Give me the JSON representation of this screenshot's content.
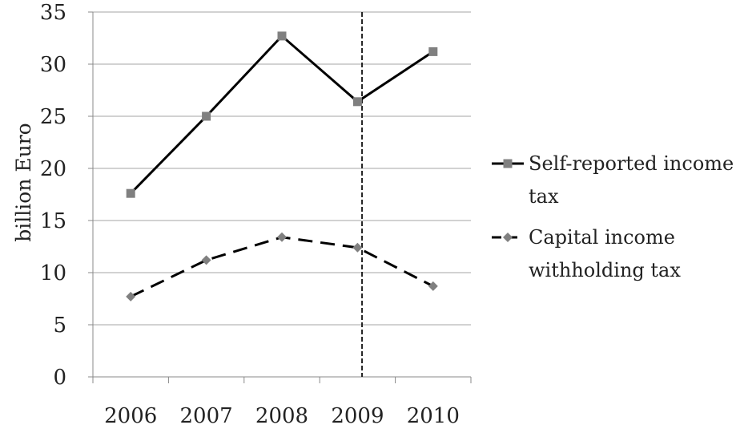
{
  "chart_data": {
    "type": "line",
    "title": "",
    "xlabel": "",
    "ylabel": "billion Euro",
    "categories": [
      "2006",
      "2007",
      "2008",
      "2009",
      "2010"
    ],
    "ylim": [
      0,
      35
    ],
    "yticks": [
      0,
      5,
      10,
      15,
      20,
      25,
      30,
      35
    ],
    "y_tick_labels": [
      "0",
      "5",
      "10",
      "15",
      "20",
      "25",
      "30",
      "35"
    ],
    "grid": "horizontal",
    "legend_position": "right",
    "reference_line": {
      "style": "dashed",
      "color": "#222222",
      "between_categories": [
        "2009",
        "2010"
      ]
    },
    "series": [
      {
        "name": "Self-reported income tax",
        "legend_lines": [
          "Self-reported income",
          "tax"
        ],
        "values": [
          17.6,
          25.0,
          32.7,
          26.4,
          31.2
        ],
        "line_style": "solid",
        "marker": "square",
        "line_color": "#000000",
        "marker_color": "#808080"
      },
      {
        "name": "Capital income withholding tax",
        "legend_lines": [
          "Capital income",
          "withholding tax"
        ],
        "values": [
          7.7,
          11.2,
          13.4,
          12.4,
          8.7
        ],
        "line_style": "dashed",
        "marker": "diamond",
        "line_color": "#000000",
        "marker_color": "#808080"
      }
    ]
  }
}
